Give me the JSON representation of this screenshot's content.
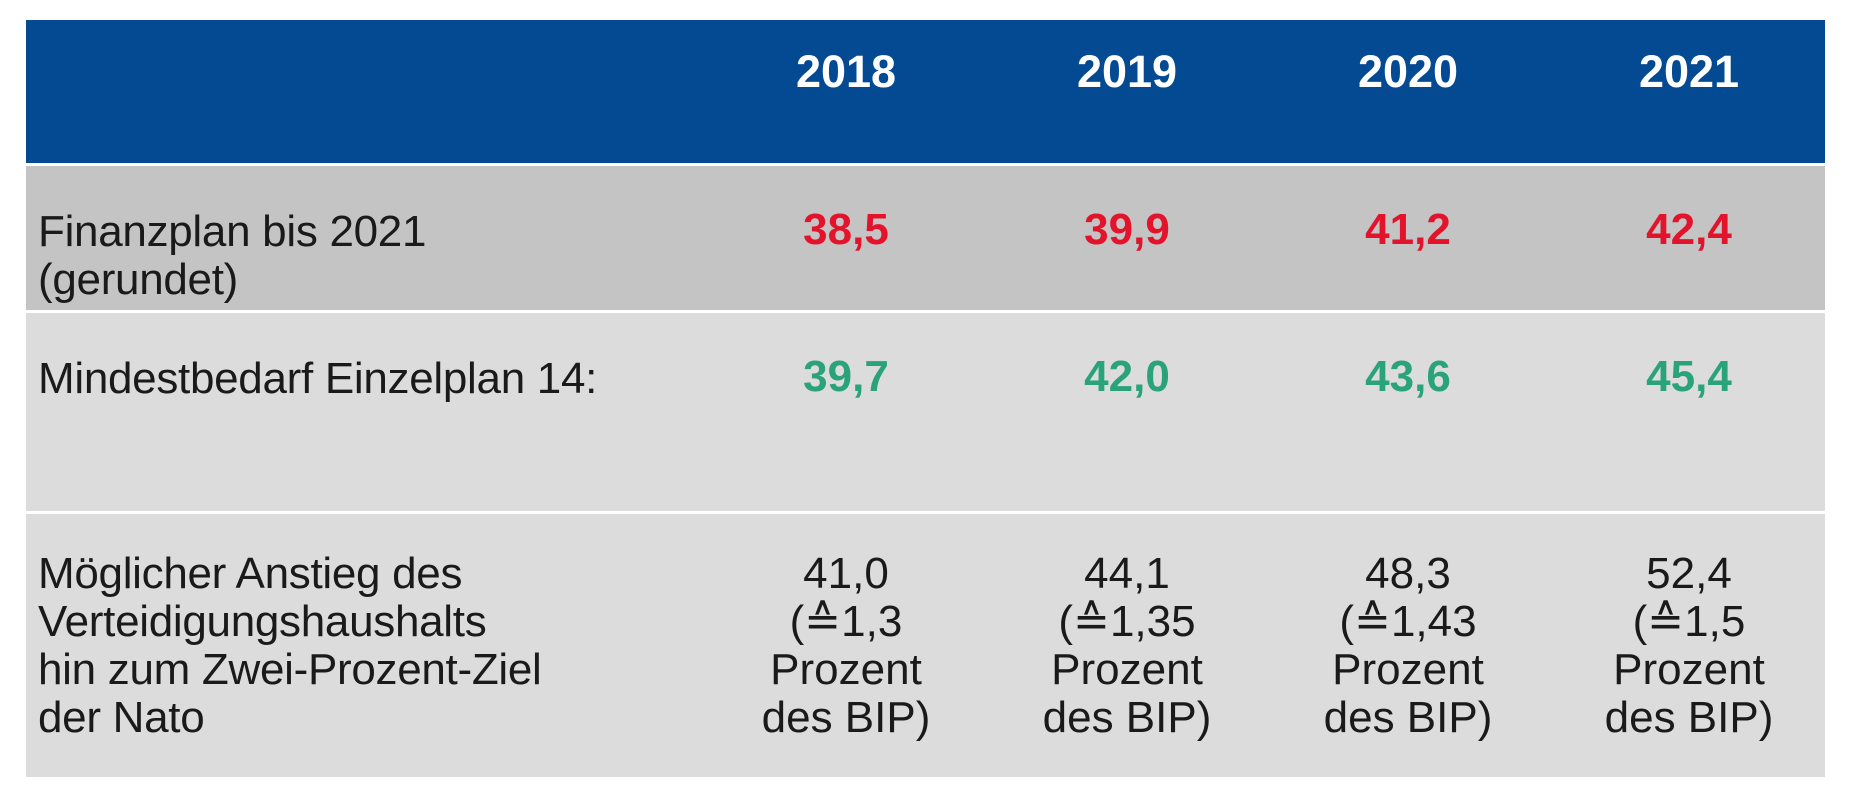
{
  "chart_data": {
    "type": "table",
    "columns": [
      "",
      "2018",
      "2019",
      "2020",
      "2021"
    ],
    "rows": [
      {
        "label": "Finanzplan bis 2021\n(gerundet)",
        "values": [
          "38,5",
          "39,9",
          "41,2",
          "42,4"
        ]
      },
      {
        "label": "Mindestbedarf Einzelplan 14:",
        "values": [
          "39,7",
          "42,0",
          "43,6",
          "45,4"
        ]
      },
      {
        "label": "Möglicher Anstieg des\nVerteidigungshaushalts\nhin zum Zwei-Prozent-Ziel\nder Nato",
        "values": [
          "41,0\n(≙1,3\nProzent\ndes BIP)",
          "44,1\n(≙1,35\nProzent\ndes BIP)",
          "48,3\n(≙1,43\nProzent\ndes BIP)",
          "52,4\n(≙1,5\nProzent\ndes BIP)"
        ]
      }
    ],
    "colors": {
      "header_bg": "#034a93",
      "header_text": "#ffffff",
      "row1_bg": "#c4c4c4",
      "row_bg": "#dcdcdc",
      "row1_values": "#e2132b",
      "row2_values": "#2aa37a",
      "row3_values": "#1a1a1a"
    }
  }
}
